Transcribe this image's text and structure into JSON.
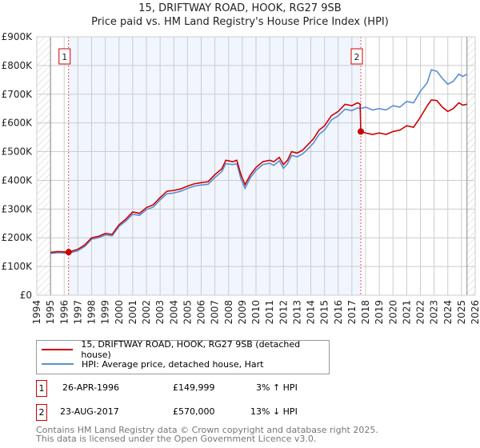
{
  "chart_data": {
    "type": "line",
    "title": "15, DRIFTWAY ROAD, HOOK, RG27 9SB",
    "subtitle": "Price paid vs. HM Land Registry's House Price Index (HPI)",
    "xlim": [
      1994,
      2026
    ],
    "ylim": [
      0,
      900000
    ],
    "xticks": [
      "1994",
      "1995",
      "1996",
      "1997",
      "1998",
      "1999",
      "2000",
      "2001",
      "2002",
      "2003",
      "2004",
      "2005",
      "2006",
      "2007",
      "2008",
      "2009",
      "2010",
      "2011",
      "2012",
      "2013",
      "2014",
      "2015",
      "2016",
      "2017",
      "2018",
      "2019",
      "2020",
      "2021",
      "2022",
      "2023",
      "2024",
      "2025",
      "2026"
    ],
    "yticks": [
      {
        "v": 0,
        "label": "£0"
      },
      {
        "v": 100000,
        "label": "£100K"
      },
      {
        "v": 200000,
        "label": "£200K"
      },
      {
        "v": 300000,
        "label": "£300K"
      },
      {
        "v": 400000,
        "label": "£400K"
      },
      {
        "v": 500000,
        "label": "£500K"
      },
      {
        "v": 600000,
        "label": "£600K"
      },
      {
        "v": 700000,
        "label": "£700K"
      },
      {
        "v": 800000,
        "label": "£800K"
      },
      {
        "v": 900000,
        "label": "£900K"
      }
    ],
    "grid": true,
    "data_range": [
      1995,
      2025.4
    ],
    "series": [
      {
        "name": "15, DRIFTWAY ROAD, HOOK, RG27 9SB (detached house)",
        "color": "#cc0000",
        "x": [
          1995,
          1995.5,
          1996,
          1996.32,
          1997,
          1997.5,
          1998,
          1998.5,
          1999,
          1999.5,
          2000,
          2000.5,
          2001,
          2001.5,
          2002,
          2002.5,
          2003,
          2003.5,
          2004,
          2004.5,
          2005,
          2005.5,
          2006,
          2006.5,
          2007,
          2007.5,
          2007.8,
          2008.3,
          2008.6,
          2008.9,
          2009.2,
          2009.6,
          2010,
          2010.5,
          2011,
          2011.3,
          2011.7,
          2012,
          2012.3,
          2012.6,
          2013,
          2013.4,
          2013.8,
          2014.2,
          2014.6,
          2015,
          2015.5,
          2016,
          2016.5,
          2017,
          2017.4,
          2017.6,
          2017.65,
          2018,
          2018.5,
          2019,
          2019.5,
          2020,
          2020.5,
          2021,
          2021.5,
          2022,
          2022.5,
          2022.8,
          2023.2,
          2023.6,
          2024,
          2024.4,
          2024.8,
          2025.1,
          2025.4
        ],
        "y": [
          149000,
          152000,
          151000,
          149999,
          160000,
          175000,
          200000,
          205000,
          215000,
          212000,
          245000,
          265000,
          290000,
          285000,
          305000,
          315000,
          340000,
          362000,
          365000,
          370000,
          380000,
          388000,
          392000,
          395000,
          420000,
          440000,
          470000,
          465000,
          470000,
          420000,
          385000,
          420000,
          445000,
          465000,
          470000,
          465000,
          480000,
          455000,
          470000,
          500000,
          495000,
          505000,
          525000,
          545000,
          575000,
          590000,
          625000,
          640000,
          665000,
          660000,
          670000,
          666000,
          570000,
          565000,
          560000,
          565000,
          560000,
          570000,
          575000,
          590000,
          585000,
          620000,
          660000,
          680000,
          678000,
          655000,
          640000,
          650000,
          670000,
          662000,
          665000
        ]
      },
      {
        "name": "HPI: Average price, detached house, Hart",
        "color": "#5b8fd0",
        "x": [
          1995,
          1995.5,
          1996,
          1996.32,
          1997,
          1997.5,
          1998,
          1998.5,
          1999,
          1999.5,
          2000,
          2000.5,
          2001,
          2001.5,
          2002,
          2002.5,
          2003,
          2003.5,
          2004,
          2004.5,
          2005,
          2005.5,
          2006,
          2006.5,
          2007,
          2007.5,
          2007.8,
          2008.3,
          2008.6,
          2008.9,
          2009.2,
          2009.6,
          2010,
          2010.5,
          2011,
          2011.3,
          2011.7,
          2012,
          2012.3,
          2012.6,
          2013,
          2013.4,
          2013.8,
          2014.2,
          2014.6,
          2015,
          2015.5,
          2016,
          2016.5,
          2017,
          2017.4,
          2017.65,
          2018,
          2018.5,
          2019,
          2019.5,
          2020,
          2020.5,
          2021,
          2021.5,
          2022,
          2022.5,
          2022.8,
          2023.2,
          2023.6,
          2024,
          2024.4,
          2024.8,
          2025.1,
          2025.4
        ],
        "y": [
          145000,
          148000,
          147000,
          146000,
          155000,
          170000,
          195000,
          200000,
          210000,
          207000,
          240000,
          258000,
          282000,
          278000,
          298000,
          307000,
          332000,
          353000,
          356000,
          362000,
          372000,
          380000,
          384000,
          386000,
          410000,
          430000,
          458000,
          455000,
          458000,
          405000,
          372000,
          410000,
          435000,
          455000,
          460000,
          452000,
          468000,
          442000,
          458000,
          487000,
          482000,
          492000,
          510000,
          530000,
          560000,
          575000,
          610000,
          625000,
          648000,
          643000,
          652000,
          650000,
          655000,
          645000,
          650000,
          645000,
          660000,
          655000,
          675000,
          670000,
          710000,
          740000,
          785000,
          780000,
          755000,
          735000,
          745000,
          770000,
          762000,
          770000
        ]
      }
    ],
    "annotations": [
      {
        "label": "1",
        "x": 1996.32,
        "y": 149999
      },
      {
        "label": "2",
        "x": 2017.65,
        "y": 570000
      }
    ]
  },
  "legend": {
    "items": [
      {
        "label": "15, DRIFTWAY ROAD, HOOK, RG27 9SB (detached house)",
        "color": "#cc0000"
      },
      {
        "label": "HPI: Average price, detached house, Hart",
        "color": "#5b8fd0"
      }
    ]
  },
  "transactions": [
    {
      "num": "1",
      "date": "26-APR-1996",
      "price": "£149,999",
      "hpi": "3% ↑ HPI"
    },
    {
      "num": "2",
      "date": "23-AUG-2017",
      "price": "£570,000",
      "hpi": "13% ↓ HPI"
    }
  ],
  "footer": {
    "line1": "Contains HM Land Registry data © Crown copyright and database right 2025.",
    "line2": "This data is licensed under the Open Government Licence v3.0."
  }
}
